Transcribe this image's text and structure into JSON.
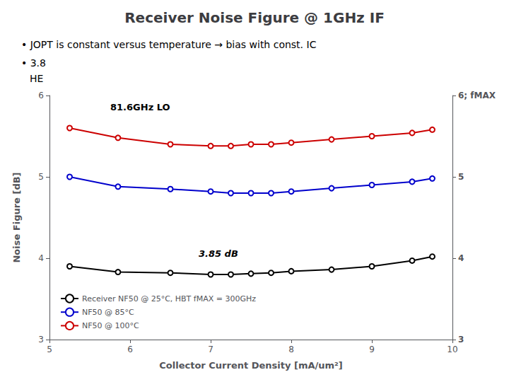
{
  "chart_data": {
    "type": "line",
    "title": "Receiver Noise Figure @ 1GHz IF",
    "xlabel": "Collector Current Density [mA/um²]",
    "ylabel": "Noise Figure [dB]",
    "annotations": [
      "• JOPT is constant versus temperature → bias with const. IC",
      "• 3.8",
      "HE",
      "81.6GHz LO",
      "3.85 dB"
    ],
    "x": [
      5.25,
      5.85,
      6.5,
      7.0,
      7.25,
      7.5,
      7.75,
      8.0,
      8.5,
      9.0,
      9.5,
      9.75
    ],
    "series": [
      {
        "name": "Receiver NF50 @ 25°C, HBT fMAX = 300GHz",
        "color": "#000000",
        "values": [
          3.9,
          3.83,
          3.82,
          3.8,
          3.8,
          3.81,
          3.82,
          3.84,
          3.86,
          3.9,
          3.97,
          4.02
        ]
      },
      {
        "name": "NF50 @ 85°C",
        "color": "#0000cc",
        "values": [
          5.0,
          4.88,
          4.85,
          4.82,
          4.8,
          4.8,
          4.8,
          4.82,
          4.86,
          4.9,
          4.94,
          4.98
        ]
      },
      {
        "name": "NF50 @ 100°C",
        "color": "#cc0000",
        "values": [
          5.6,
          5.48,
          5.4,
          5.38,
          5.38,
          5.4,
          5.4,
          5.42,
          5.46,
          5.5,
          5.54,
          5.58
        ]
      }
    ],
    "xlim": [
      5,
      10
    ],
    "ylim": [
      3,
      6
    ],
    "xticks": [
      5,
      6,
      7,
      8,
      9,
      10
    ],
    "yticks": [
      3,
      4,
      5,
      6
    ],
    "y2lim": [
      3,
      6
    ],
    "y2ticks": [
      3,
      4,
      5,
      {
        "value": 6,
        "label": "6; fMAX"
      }
    ],
    "marker": "circle",
    "grid": false,
    "legend": "lower left"
  }
}
